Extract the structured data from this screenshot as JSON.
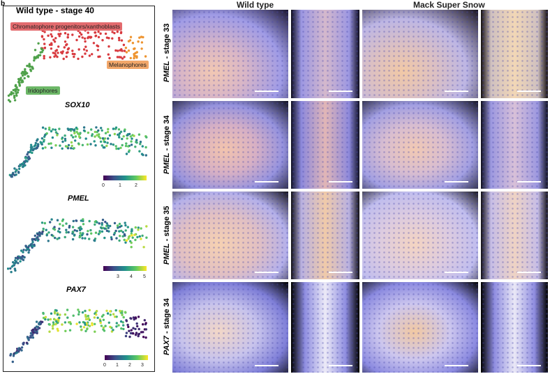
{
  "panel_letter": "b",
  "left": {
    "title": "Wild type - stage 40",
    "clusters": [
      {
        "label": "Chromatophore progenitors/xanthoblasts",
        "color": "#e0555a"
      },
      {
        "label": "Melanophores",
        "color": "#f0a15a"
      },
      {
        "label": "Iridophores",
        "color": "#5fb35a"
      }
    ],
    "genes": [
      {
        "name": "SOX10",
        "ticks": [
          "0",
          "1",
          "2"
        ]
      },
      {
        "name": "PMEL",
        "ticks": [
          "3",
          "4",
          "5"
        ]
      },
      {
        "name": "PAX7",
        "ticks": [
          "0",
          "1",
          "2",
          "3"
        ]
      }
    ]
  },
  "columns": [
    "Wild type",
    "Mack Super Snow"
  ],
  "rows": [
    {
      "gene": "PMEL",
      "stage": " - stage 33"
    },
    {
      "gene": "PMEL",
      "stage": " - stage 34"
    },
    {
      "gene": "PMEL",
      "stage": " - stage 35"
    },
    {
      "gene": "PAX7",
      "stage": " - stage 34"
    }
  ],
  "colors": {
    "viridis_low": "#440154",
    "viridis_mid": "#21918c",
    "viridis_high": "#fde725",
    "stain": "#8c8ce6"
  }
}
